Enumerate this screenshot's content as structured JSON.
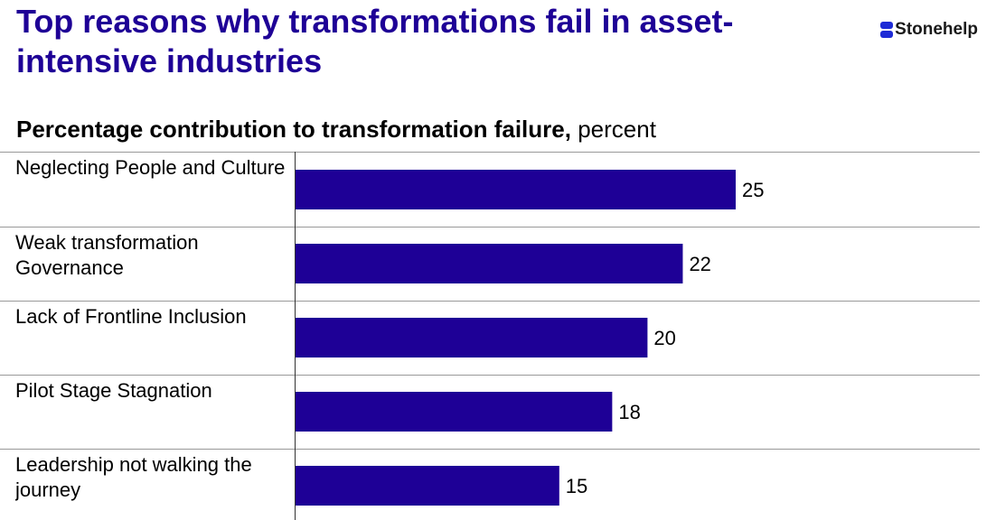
{
  "chart_data": {
    "type": "barh",
    "title": "Top reasons why transformations fail in asset-intensive industries",
    "logo": "Stonehelp",
    "subtitle": "Percentage contribution to transformation failure,",
    "unit": "percent",
    "categories": [
      "Neglecting People and Culture",
      "Weak transformation Governance",
      "Lack of Frontline Inclusion",
      "Pilot Stage Stagnation",
      "Leadership not walking the journey"
    ],
    "values": [
      25,
      22,
      20,
      18,
      15
    ],
    "color": "#1e0096",
    "xlim": [
      0,
      25
    ]
  }
}
